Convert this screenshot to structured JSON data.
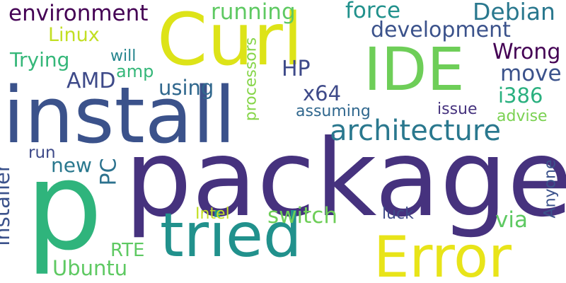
{
  "words": [
    {
      "text": "package",
      "color": "#46327e",
      "rotated": false
    },
    {
      "text": "install",
      "color": "#3b528b",
      "rotated": false
    },
    {
      "text": "p",
      "color": "#2fb47c",
      "rotated": false
    },
    {
      "text": "Curl",
      "color": "#dde318",
      "rotated": false
    },
    {
      "text": "tried",
      "color": "#21918c",
      "rotated": false
    },
    {
      "text": "Error",
      "color": "#e8e419",
      "rotated": false
    },
    {
      "text": "IDE",
      "color": "#6ece58",
      "rotated": false
    },
    {
      "text": "architecture",
      "color": "#2a788e",
      "rotated": false
    },
    {
      "text": "environment",
      "color": "#440154",
      "rotated": false
    },
    {
      "text": "running",
      "color": "#5ec962",
      "rotated": false
    },
    {
      "text": "force",
      "color": "#21918c",
      "rotated": false
    },
    {
      "text": "Debian",
      "color": "#2a788e",
      "rotated": false
    },
    {
      "text": "development",
      "color": "#3b528b",
      "rotated": false
    },
    {
      "text": "Linux",
      "color": "#c2df23",
      "rotated": false
    },
    {
      "text": "Wrong",
      "color": "#440154",
      "rotated": false
    },
    {
      "text": "Trying",
      "color": "#35b779",
      "rotated": false
    },
    {
      "text": "will",
      "color": "#25858e",
      "rotated": false
    },
    {
      "text": "amp",
      "color": "#35b779",
      "rotated": false
    },
    {
      "text": "HP",
      "color": "#3e4a89",
      "rotated": false
    },
    {
      "text": "move",
      "color": "#3b528b",
      "rotated": false
    },
    {
      "text": "AMD",
      "color": "#3e4a89",
      "rotated": false
    },
    {
      "text": "using",
      "color": "#31688e",
      "rotated": false
    },
    {
      "text": "x64",
      "color": "#3e4a89",
      "rotated": false
    },
    {
      "text": "i386",
      "color": "#2ab07f",
      "rotated": false
    },
    {
      "text": "issue",
      "color": "#46337e",
      "rotated": false
    },
    {
      "text": "assuming",
      "color": "#31688e",
      "rotated": false
    },
    {
      "text": "advise",
      "color": "#7ad151",
      "rotated": false
    },
    {
      "text": "processors",
      "color": "#86d549",
      "rotated": true
    },
    {
      "text": "run",
      "color": "#3e4a89",
      "rotated": false
    },
    {
      "text": "new",
      "color": "#2a788e",
      "rotated": false
    },
    {
      "text": "PC",
      "color": "#2c728e",
      "rotated": true
    },
    {
      "text": "installer",
      "color": "#3b528b",
      "rotated": true
    },
    {
      "text": "Anyone",
      "color": "#3b528b",
      "rotated": true
    },
    {
      "text": "Intel",
      "color": "#c2df23",
      "rotated": false
    },
    {
      "text": "switch",
      "color": "#6ece58",
      "rotated": false
    },
    {
      "text": "luck",
      "color": "#3e4a89",
      "rotated": false
    },
    {
      "text": "via",
      "color": "#5ec962",
      "rotated": false
    },
    {
      "text": "RTE",
      "color": "#5ec962",
      "rotated": false
    },
    {
      "text": "Ubuntu",
      "color": "#5ec962",
      "rotated": false
    }
  ]
}
